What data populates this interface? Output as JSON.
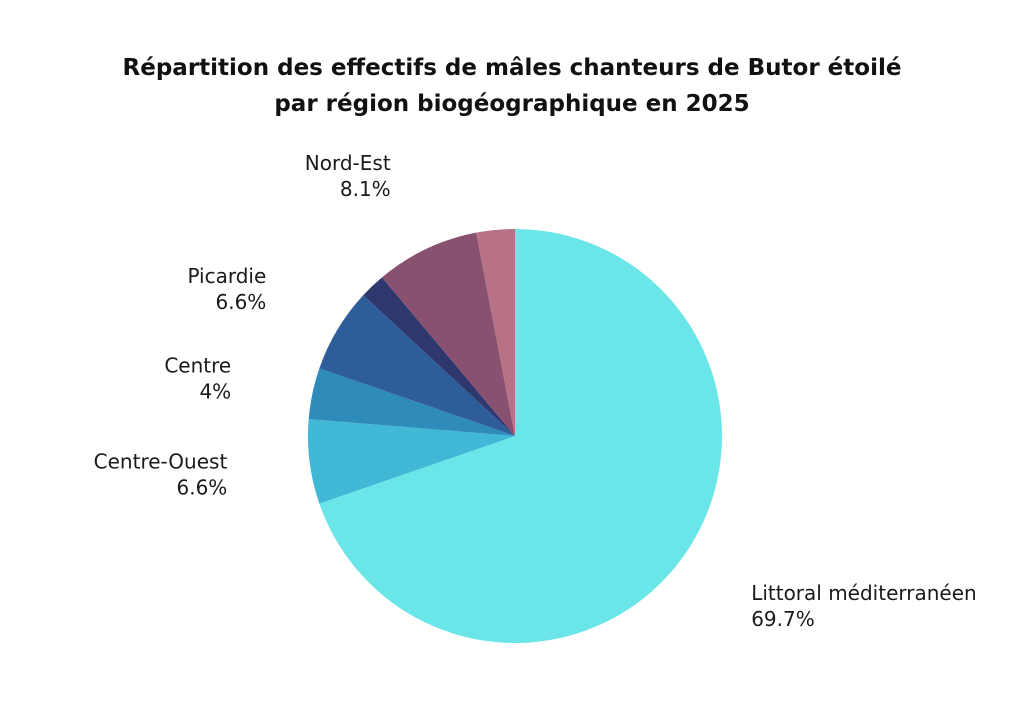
{
  "chart_data": {
    "type": "pie",
    "title_lines": [
      "Répartition des effectifs de mâles chanteurs de Butor étoilé",
      "par région biogéographique en 2025"
    ],
    "slices": [
      {
        "label": "Littoral méditerranéen",
        "value": 69.7,
        "value_label": "69.7%",
        "color": "#6ae6e9",
        "show_label": true
      },
      {
        "label": "Centre-Ouest",
        "value": 6.6,
        "value_label": "6.6%",
        "color": "#41b8d6",
        "show_label": true
      },
      {
        "label": "Centre",
        "value": 4,
        "value_label": "4%",
        "color": "#2e8bba",
        "show_label": true
      },
      {
        "label": "Picardie",
        "value": 6.6,
        "value_label": "6.6%",
        "color": "#2e5e99",
        "show_label": true
      },
      {
        "label": "",
        "value": 2.0,
        "value_label": "",
        "color": "#2f376f",
        "show_label": false
      },
      {
        "label": "Nord-Est",
        "value": 8.1,
        "value_label": "8.1%",
        "color": "#885170",
        "show_label": true
      },
      {
        "label": "",
        "value": 3.0,
        "value_label": "",
        "color": "#b87285",
        "show_label": false
      }
    ],
    "start": "12 o'clock",
    "direction": "clockwise",
    "legend": "none"
  }
}
